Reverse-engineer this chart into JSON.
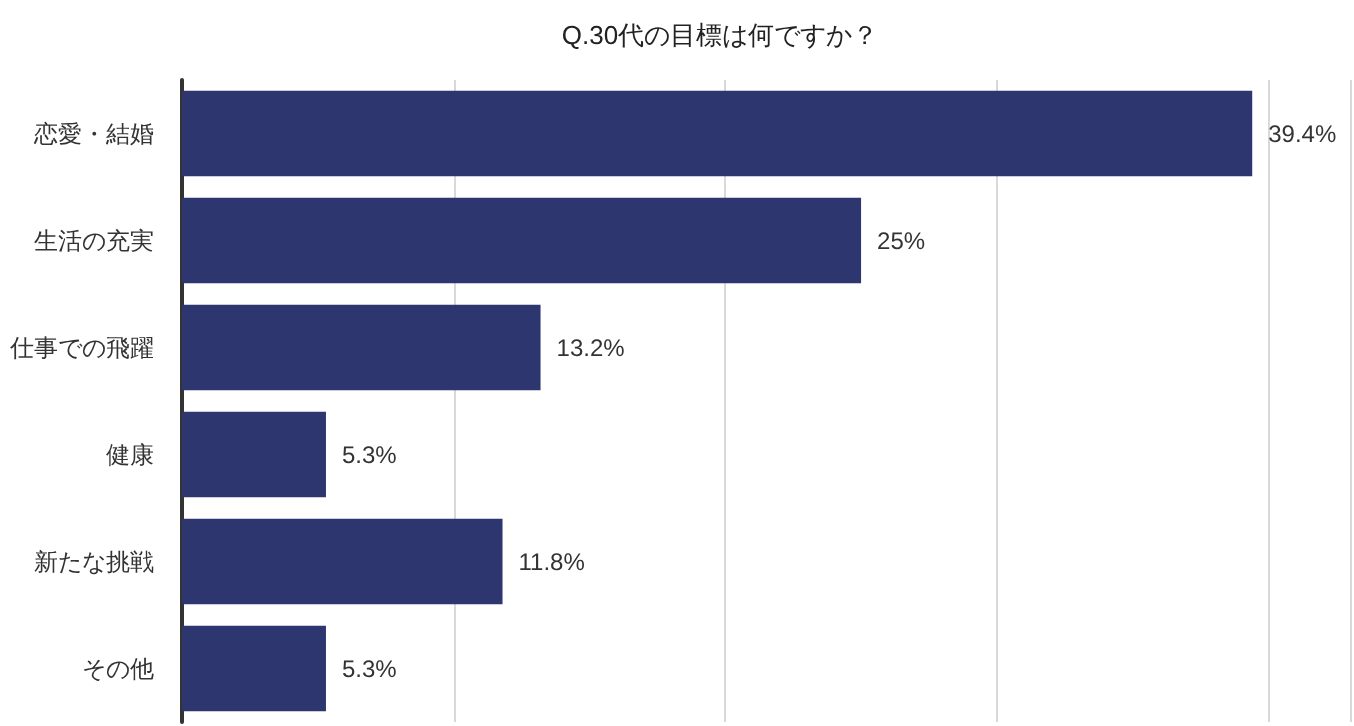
{
  "chart_data": {
    "type": "bar",
    "orientation": "horizontal",
    "title": "Q.30代の目標は何ですか？",
    "categories": [
      "恋愛・結婚",
      "生活の充実",
      "仕事での飛躍",
      "健康",
      "新たな挑戦",
      "その他"
    ],
    "values": [
      39.4,
      25,
      13.2,
      5.3,
      11.8,
      5.3
    ],
    "value_labels": [
      "39.4%",
      "25%",
      "13.2%",
      "5.3%",
      "11.8%",
      "5.3%"
    ],
    "color": "#2e3670",
    "xlim": [
      0,
      43
    ],
    "xticks": [
      {
        "value": 0,
        "label": null
      },
      {
        "value": 10,
        "label": null
      },
      {
        "value": 20,
        "label": null
      },
      {
        "value": 30,
        "label": null
      },
      {
        "value": 40,
        "label": null
      }
    ],
    "tick_labels": "y",
    "grid": "x"
  }
}
